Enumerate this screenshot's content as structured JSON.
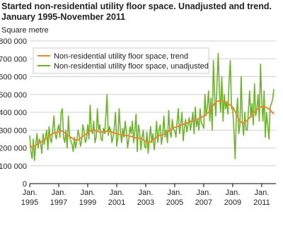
{
  "chart_data": {
    "type": "line",
    "title": "Started non-residential utility floor space. Unadjusted and trend.",
    "subtitle": "January 1995-November 2011",
    "y_label": "Square metre",
    "categories": [
      "Jan. 1995",
      null,
      null,
      null,
      null,
      null,
      null,
      null,
      null,
      null,
      null,
      null,
      null,
      null,
      null,
      null,
      null,
      null,
      null,
      null,
      null,
      null,
      null,
      null,
      "Jan. 1997",
      null,
      null,
      null,
      null,
      null,
      null,
      null,
      null,
      null,
      null,
      null,
      null,
      null,
      null,
      null,
      null,
      null,
      null,
      null,
      null,
      null,
      null,
      null,
      "Jan. 1999",
      null,
      null,
      null,
      null,
      null,
      null,
      null,
      null,
      null,
      null,
      null,
      null,
      null,
      null,
      null,
      null,
      null,
      null,
      null,
      null,
      null,
      null,
      null,
      "Jan. 2001",
      null,
      null,
      null,
      null,
      null,
      null,
      null,
      null,
      null,
      null,
      null,
      null,
      null,
      null,
      null,
      null,
      null,
      null,
      null,
      null,
      null,
      null,
      null,
      "Jan. 2003",
      null,
      null,
      null,
      null,
      null,
      null,
      null,
      null,
      null,
      null,
      null,
      null,
      null,
      null,
      null,
      null,
      null,
      null,
      null,
      null,
      null,
      null,
      null,
      "Jan. 2005",
      null,
      null,
      null,
      null,
      null,
      null,
      null,
      null,
      null,
      null,
      null,
      null,
      null,
      null,
      null,
      null,
      null,
      null,
      null,
      null,
      null,
      null,
      null,
      "Jan. 2007",
      null,
      null,
      null,
      null,
      null,
      null,
      null,
      null,
      null,
      null,
      null,
      null,
      null,
      null,
      null,
      null,
      null,
      null,
      null,
      null,
      null,
      null,
      null,
      "Jan. 2009",
      null,
      null,
      null,
      null,
      null,
      null,
      null,
      null,
      null,
      null,
      null,
      null,
      null,
      null,
      null,
      null,
      null,
      null,
      null,
      null,
      null,
      null,
      null,
      "Jan. 2011",
      null,
      null,
      null,
      null,
      null,
      null,
      null,
      null,
      null,
      null
    ],
    "series": [
      {
        "name": "Non-residential utility floor space, trend",
        "color": "#e8892e",
        "values": [
          215000,
          210000,
          205000,
          205000,
          210000,
          215000,
          220000,
          225000,
          230000,
          235000,
          235000,
          240000,
          245000,
          250000,
          255000,
          260000,
          265000,
          270000,
          275000,
          280000,
          285000,
          285000,
          285000,
          290000,
          290000,
          295000,
          295000,
          295000,
          290000,
          285000,
          280000,
          275000,
          270000,
          265000,
          260000,
          255000,
          250000,
          248000,
          245000,
          245000,
          245000,
          250000,
          255000,
          260000,
          265000,
          270000,
          275000,
          280000,
          285000,
          290000,
          295000,
          300000,
          300000,
          300000,
          300000,
          295000,
          295000,
          290000,
          290000,
          290000,
          290000,
          290000,
          290000,
          290000,
          295000,
          295000,
          295000,
          290000,
          290000,
          285000,
          285000,
          280000,
          280000,
          280000,
          275000,
          275000,
          270000,
          270000,
          270000,
          270000,
          270000,
          270000,
          270000,
          265000,
          265000,
          262000,
          260000,
          258000,
          255000,
          255000,
          255000,
          255000,
          255000,
          250000,
          245000,
          240000,
          235000,
          230000,
          230000,
          232000,
          235000,
          240000,
          245000,
          250000,
          255000,
          260000,
          265000,
          270000,
          270000,
          272000,
          275000,
          278000,
          280000,
          285000,
          290000,
          295000,
          300000,
          305000,
          310000,
          312000,
          315000,
          318000,
          320000,
          322000,
          325000,
          328000,
          330000,
          332000,
          335000,
          338000,
          340000,
          342000,
          345000,
          348000,
          350000,
          352000,
          355000,
          358000,
          360000,
          362000,
          365000,
          368000,
          370000,
          375000,
          380000,
          385000,
          390000,
          395000,
          400000,
          410000,
          420000,
          430000,
          440000,
          450000,
          455000,
          460000,
          462000,
          465000,
          465000,
          465000,
          462000,
          460000,
          458000,
          455000,
          450000,
          445000,
          440000,
          435000,
          430000,
          420000,
          405000,
          390000,
          375000,
          360000,
          350000,
          345000,
          340000,
          340000,
          345000,
          350000,
          355000,
          362000,
          370000,
          378000,
          385000,
          392000,
          400000,
          408000,
          415000,
          420000,
          425000,
          430000,
          432000,
          433000,
          432000,
          430000,
          427000,
          423000,
          418000,
          412000,
          405000,
          398000,
          390000
        ]
      },
      {
        "name": "Non-residential utility floor space, unadjusted",
        "color": "#6cb32a",
        "values": [
          270000,
          180000,
          140000,
          250000,
          130000,
          220000,
          280000,
          200000,
          250000,
          230000,
          170000,
          280000,
          220000,
          260000,
          300000,
          190000,
          320000,
          250000,
          230000,
          300000,
          380000,
          280000,
          250000,
          300000,
          330000,
          260000,
          400000,
          420000,
          260000,
          230000,
          300000,
          200000,
          380000,
          260000,
          240000,
          220000,
          180000,
          260000,
          200000,
          240000,
          300000,
          270000,
          210000,
          240000,
          330000,
          290000,
          230000,
          250000,
          330000,
          250000,
          440000,
          300000,
          280000,
          350000,
          230000,
          260000,
          420000,
          300000,
          330000,
          250000,
          240000,
          310000,
          280000,
          380000,
          500000,
          270000,
          320000,
          300000,
          230000,
          260000,
          320000,
          400000,
          210000,
          260000,
          420000,
          300000,
          230000,
          310000,
          260000,
          350000,
          290000,
          200000,
          250000,
          320000,
          280000,
          350000,
          230000,
          300000,
          390000,
          180000,
          330000,
          290000,
          190000,
          260000,
          300000,
          210000,
          200000,
          290000,
          170000,
          250000,
          320000,
          230000,
          280000,
          190000,
          250000,
          350000,
          230000,
          300000,
          330000,
          220000,
          270000,
          380000,
          260000,
          300000,
          230000,
          410000,
          290000,
          260000,
          360000,
          300000,
          300000,
          260000,
          350000,
          420000,
          280000,
          330000,
          400000,
          240000,
          310000,
          360000,
          290000,
          330000,
          370000,
          300000,
          340000,
          400000,
          280000,
          430000,
          320000,
          360000,
          300000,
          420000,
          340000,
          330000,
          310000,
          500000,
          380000,
          430000,
          520000,
          350000,
          480000,
          300000,
          690000,
          500000,
          380000,
          560000,
          730000,
          520000,
          400000,
          600000,
          350000,
          500000,
          420000,
          460000,
          390000,
          580000,
          690000,
          420000,
          420000,
          300000,
          140000,
          380000,
          480000,
          280000,
          330000,
          600000,
          350000,
          270000,
          400000,
          300000,
          300000,
          410000,
          520000,
          370000,
          450000,
          330000,
          560000,
          380000,
          420000,
          500000,
          350000,
          670000,
          470000,
          350000,
          520000,
          260000,
          400000,
          330000,
          250000,
          430000,
          450000,
          470000,
          530000
        ]
      }
    ],
    "ylim": [
      0,
      800000
    ],
    "yticks": [
      0,
      {
        "value": 100000,
        "label": "100 000"
      },
      {
        "value": 200000,
        "label": "200 000"
      },
      {
        "value": 300000,
        "label": "300 000"
      },
      {
        "value": 400000,
        "label": "400 000"
      },
      {
        "value": 500000,
        "label": "500 000"
      },
      {
        "value": 600000,
        "label": "600 000"
      },
      {
        "value": 700000,
        "label": "700 000"
      },
      {
        "value": 800000,
        "label": "800 000"
      }
    ],
    "grid": true,
    "legend": "upper-left"
  }
}
